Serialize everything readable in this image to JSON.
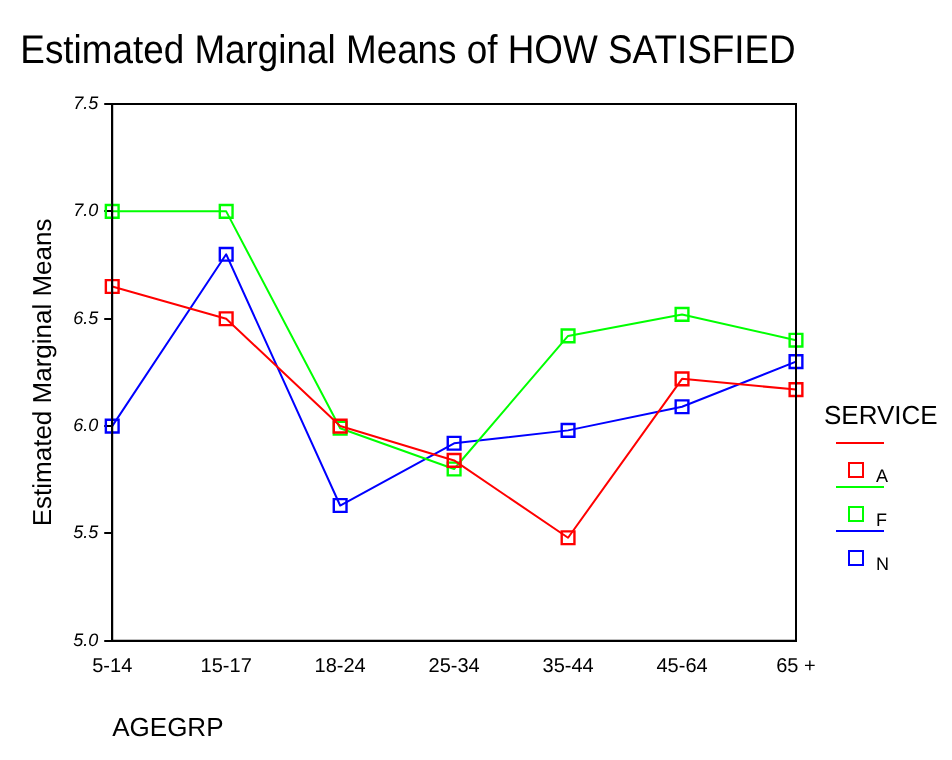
{
  "chart_data": {
    "type": "line",
    "title": "Estimated Marginal Means of HOW SATISFIED",
    "xlabel": "AGEGRP",
    "ylabel": "Estimated Marginal Means",
    "legend_title": "SERVICE",
    "categories": [
      "5-14",
      "15-17",
      "18-24",
      "25-34",
      "35-44",
      "45-64",
      "65 +"
    ],
    "series": [
      {
        "name": "A",
        "color": "#ff0000",
        "values": [
          6.65,
          6.5,
          6.0,
          5.84,
          5.48,
          6.22,
          6.17
        ]
      },
      {
        "name": "F",
        "color": "#00ff00",
        "values": [
          7.0,
          7.0,
          5.99,
          5.8,
          6.42,
          6.52,
          6.4
        ]
      },
      {
        "name": "N",
        "color": "#0000ff",
        "values": [
          6.0,
          6.8,
          5.63,
          5.92,
          5.98,
          6.09,
          6.3
        ]
      }
    ],
    "ylim": [
      5.0,
      7.5
    ],
    "yticks": [
      {
        "value": 5.0,
        "label": "5.0"
      },
      {
        "value": 5.5,
        "label": "5.5"
      },
      {
        "value": 6.0,
        "label": "6.0"
      },
      {
        "value": 6.5,
        "label": "6.5"
      },
      {
        "value": 7.0,
        "label": "7.0"
      },
      {
        "value": 7.5,
        "label": "7.5"
      }
    ],
    "grid": false,
    "legend": "right",
    "marker": "square",
    "line_style": "solid"
  }
}
